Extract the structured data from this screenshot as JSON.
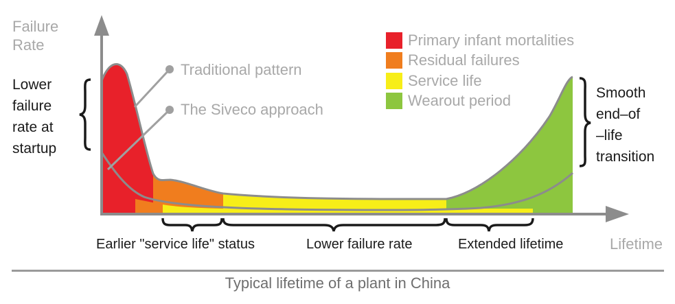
{
  "axes": {
    "y_label": [
      "Failure",
      "Rate"
    ],
    "x_label": "Lifetime"
  },
  "annotations": {
    "traditional": "Traditional pattern",
    "siveco": "The Siveco approach",
    "left_brace_text": [
      "Lower",
      "failure",
      "rate at",
      "startup"
    ],
    "right_brace_text": [
      "Smooth",
      "end–of",
      "–life",
      "transition"
    ]
  },
  "legend": [
    {
      "label": "Primary infant mortalities",
      "color": "#e8212a"
    },
    {
      "label": "Residual failures",
      "color": "#f07d1e"
    },
    {
      "label": "Service life",
      "color": "#f7ee18"
    },
    {
      "label": "Wearout period",
      "color": "#8dc63f"
    }
  ],
  "bottom_braces": {
    "earlier": "Earlier \"service life\" status",
    "lower": "Lower failure rate",
    "extended": "Extended lifetime"
  },
  "caption": "Typical lifetime of a plant in China",
  "colors": {
    "axis": "#8c8c8c",
    "curve": "#8c8c8c",
    "pointer_dot": "#a0a0a0"
  }
}
